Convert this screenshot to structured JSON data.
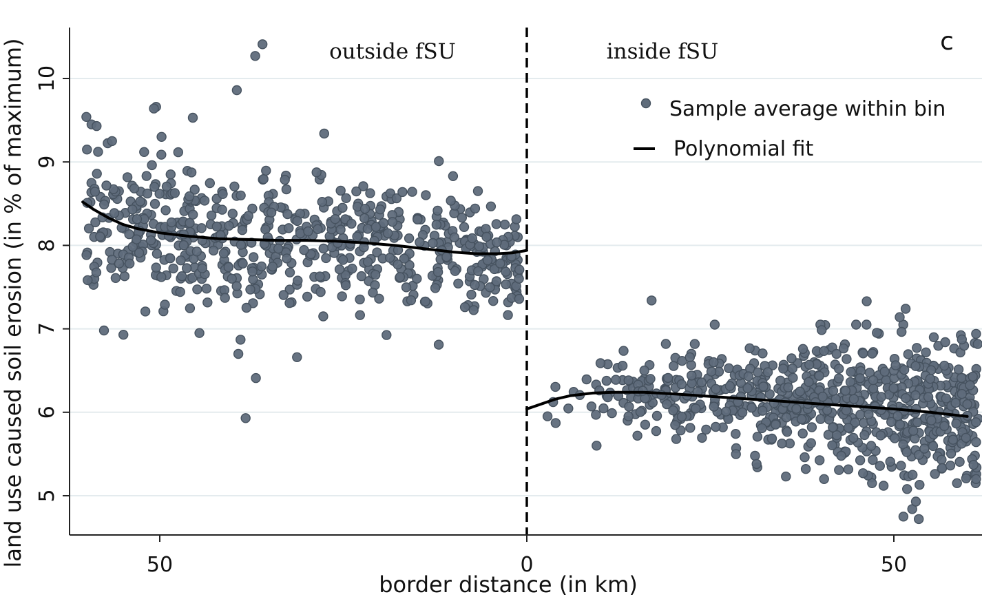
{
  "chart_data": {
    "type": "scatter",
    "panel_label": "c",
    "xlabel": "border distance (in km)",
    "ylabel": "land use caused soil erosion (in % of maximum)",
    "x_domain": [
      -62,
      62
    ],
    "ylim": [
      4.55,
      10.6
    ],
    "x_ticks": [
      {
        "value": -50,
        "label": "50"
      },
      {
        "value": 0,
        "label": "0"
      },
      {
        "value": 50,
        "label": "50"
      }
    ],
    "y_ticks": [
      {
        "value": 5,
        "label": "5"
      },
      {
        "value": 6,
        "label": "6"
      },
      {
        "value": 7,
        "label": "7"
      },
      {
        "value": 8,
        "label": "8"
      },
      {
        "value": 9,
        "label": "9"
      },
      {
        "value": 10,
        "label": "10"
      }
    ],
    "grid": true,
    "cutoff_x": 0,
    "region_labels": {
      "outside": "outside fSU",
      "inside": "inside fSU"
    },
    "legend": {
      "position": "top-right",
      "scatter_label": "Sample average within bin",
      "fit_label": "Polynomial fit"
    },
    "colors": {
      "points": "#5f6c7b",
      "point_edge": "#46525f",
      "fit": "#000000",
      "grid": "#e4ebee",
      "cutoff": "#000000"
    },
    "fit": {
      "outside": [
        [
          -60.5,
          8.52
        ],
        [
          -59,
          8.43
        ],
        [
          -57,
          8.33
        ],
        [
          -55,
          8.25
        ],
        [
          -53,
          8.2
        ],
        [
          -50,
          8.15
        ],
        [
          -46,
          8.11
        ],
        [
          -42,
          8.08
        ],
        [
          -38,
          8.07
        ],
        [
          -34,
          8.06
        ],
        [
          -30,
          8.06
        ],
        [
          -26,
          8.05
        ],
        [
          -22,
          8.03
        ],
        [
          -18,
          8.0
        ],
        [
          -14,
          7.96
        ],
        [
          -10,
          7.92
        ],
        [
          -7,
          7.9
        ],
        [
          -4,
          7.9
        ],
        [
          -2,
          7.91
        ],
        [
          0,
          7.94
        ]
      ],
      "inside": [
        [
          0,
          6.04
        ],
        [
          2,
          6.1
        ],
        [
          4,
          6.16
        ],
        [
          6,
          6.2
        ],
        [
          9,
          6.23
        ],
        [
          12,
          6.24
        ],
        [
          16,
          6.24
        ],
        [
          20,
          6.22
        ],
        [
          25,
          6.19
        ],
        [
          30,
          6.16
        ],
        [
          35,
          6.13
        ],
        [
          40,
          6.1
        ],
        [
          45,
          6.07
        ],
        [
          50,
          6.04
        ],
        [
          55,
          6.0
        ],
        [
          60,
          5.95
        ]
      ]
    },
    "outside_trend": {
      "x_range": [
        -60,
        -1
      ],
      "outliers": [
        [
          -37,
          10.27
        ],
        [
          -36,
          10.41
        ],
        [
          -39.5,
          9.86
        ],
        [
          -50.5,
          9.66
        ],
        [
          -50.8,
          9.64
        ],
        [
          -60,
          9.54
        ],
        [
          -45.5,
          9.53
        ],
        [
          -59.3,
          9.45
        ],
        [
          -58.6,
          9.43
        ],
        [
          -27.6,
          9.34
        ],
        [
          -56.5,
          9.25
        ],
        [
          -39,
          6.87
        ],
        [
          -39.3,
          6.7
        ],
        [
          -36.9,
          6.41
        ],
        [
          -38.3,
          5.93
        ],
        [
          -31.3,
          6.66
        ],
        [
          -12,
          6.81
        ],
        [
          -44.6,
          6.95
        ],
        [
          -57.6,
          6.98
        ],
        [
          -49.5,
          7.21
        ],
        [
          -49.3,
          7.29
        ]
      ]
    },
    "inside_trend": {
      "x_range": [
        0.3,
        61.5
      ],
      "outliers": [
        [
          17,
          7.34
        ],
        [
          46.3,
          7.33
        ],
        [
          51.6,
          7.24
        ],
        [
          50.8,
          7.14
        ],
        [
          61.2,
          6.94
        ],
        [
          57,
          6.84
        ],
        [
          51.3,
          4.75
        ],
        [
          53.4,
          4.72
        ],
        [
          52.5,
          4.84
        ],
        [
          53,
          4.93
        ],
        [
          51.8,
          5.08
        ],
        [
          53.5,
          5.13
        ],
        [
          48.6,
          5.12
        ],
        [
          61.2,
          5.2
        ],
        [
          40.5,
          5.2
        ],
        [
          45.8,
          5.27
        ],
        [
          38,
          5.32
        ],
        [
          31.3,
          5.38
        ],
        [
          35.3,
          5.23
        ],
        [
          9.5,
          5.6
        ]
      ]
    }
  }
}
